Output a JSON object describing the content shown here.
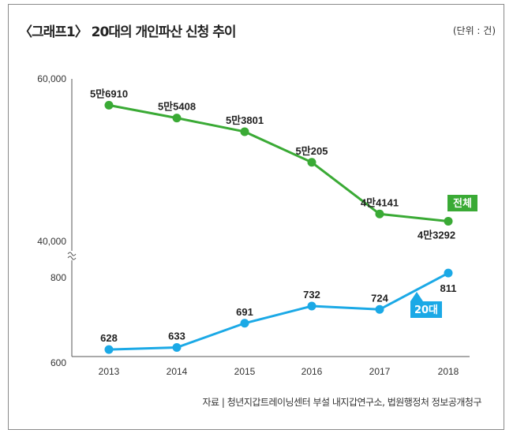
{
  "title": "〈그래프1〉 20대의 개인파산 신청 추이",
  "unit": "(단위 : 건)",
  "source": "자료 | 청년지갑트레이닝센터 부설 내지갑연구소, 법원행정처 정보공개청구",
  "chart_data": {
    "type": "line",
    "x": [
      "2013",
      "2014",
      "2015",
      "2016",
      "2017",
      "2018"
    ],
    "upper_axis": {
      "ticks": [
        "60,000",
        "40,000"
      ],
      "ylim": [
        40000,
        60000
      ]
    },
    "lower_axis": {
      "ticks": [
        "800",
        "600"
      ],
      "ylim": [
        600,
        800
      ]
    },
    "series": [
      {
        "name": "전체",
        "color": "#3aaa35",
        "values": [
          56910,
          55408,
          53801,
          50205,
          44141,
          43292
        ],
        "labels": [
          "5만6910",
          "5만5408",
          "5만3801",
          "5만205",
          "4만4141",
          "4만3292"
        ]
      },
      {
        "name": "20대",
        "color": "#1ba9e6",
        "values": [
          628,
          633,
          691,
          732,
          724,
          811
        ],
        "labels": [
          "628",
          "633",
          "691",
          "732",
          "724",
          "811"
        ]
      }
    ]
  }
}
